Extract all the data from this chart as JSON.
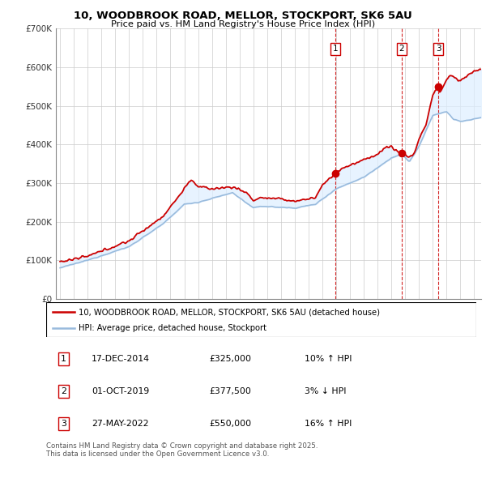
{
  "title": "10, WOODBROOK ROAD, MELLOR, STOCKPORT, SK6 5AU",
  "subtitle": "Price paid vs. HM Land Registry's House Price Index (HPI)",
  "legend_line1": "10, WOODBROOK ROAD, MELLOR, STOCKPORT, SK6 5AU (detached house)",
  "legend_line2": "HPI: Average price, detached house, Stockport",
  "transactions": [
    {
      "num": 1,
      "date": "17-DEC-2014",
      "price": "£325,000",
      "pct": "10%",
      "dir": "↑",
      "label": "HPI",
      "year": 2014.96,
      "value": 325000
    },
    {
      "num": 2,
      "date": "01-OCT-2019",
      "price": "£377,500",
      "pct": "3%",
      "dir": "↓",
      "label": "HPI",
      "year": 2019.75,
      "value": 377500
    },
    {
      "num": 3,
      "date": "27-MAY-2022",
      "price": "£550,000",
      "pct": "16%",
      "dir": "↑",
      "label": "HPI",
      "year": 2022.41,
      "value": 550000
    }
  ],
  "footnote": "Contains HM Land Registry data © Crown copyright and database right 2025.\nThis data is licensed under the Open Government Licence v3.0.",
  "red_color": "#cc0000",
  "blue_color": "#99bbdd",
  "fill_color": "#ddeeff",
  "dashed_color": "#cc0000",
  "ylim": [
    0,
    700000
  ],
  "xlim_start": 1994.7,
  "xlim_end": 2025.5
}
